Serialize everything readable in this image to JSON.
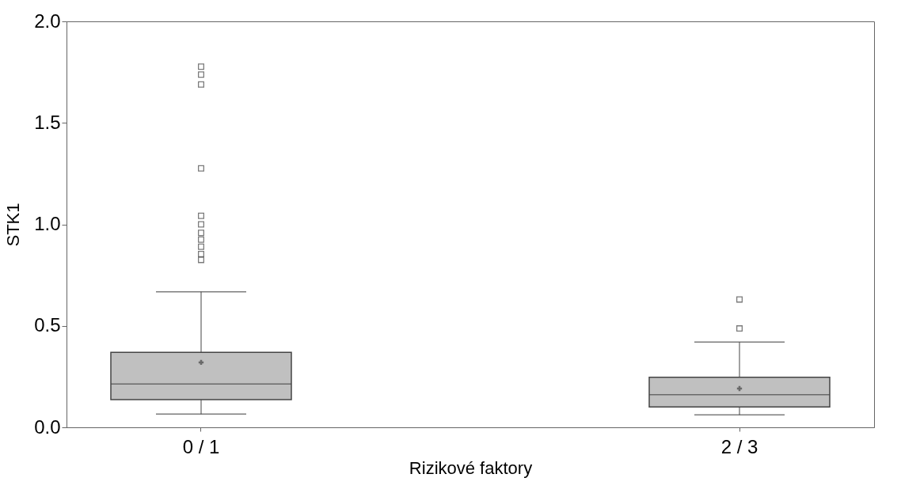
{
  "chart_data": {
    "type": "box",
    "xlabel": "Rizikové faktory",
    "ylabel": "STK1",
    "categories": [
      "0 / 1",
      "2 / 3"
    ],
    "color": "#c0c0c0",
    "boxes": [
      {
        "low": 0.065,
        "q1": 0.136,
        "median": 0.213,
        "q3": 0.369,
        "high": 0.668,
        "mean": 0.32,
        "outliers": [
          1.777,
          1.738,
          1.689,
          1.276,
          1.042,
          1.0,
          0.958,
          0.925,
          0.89,
          0.854,
          0.825
        ]
      },
      {
        "low": 0.061,
        "q1": 0.1,
        "median": 0.161,
        "q3": 0.247,
        "high": 0.42,
        "mean": 0.191,
        "outliers": [
          0.63,
          0.487
        ]
      }
    ],
    "ylim": [
      0,
      2
    ],
    "yticks": [
      {
        "value": 0,
        "label": "0.0"
      },
      0.5,
      {
        "value": 1,
        "label": "1.0"
      },
      1.5,
      {
        "value": 2,
        "label": "2.0"
      }
    ],
    "grid": false
  }
}
